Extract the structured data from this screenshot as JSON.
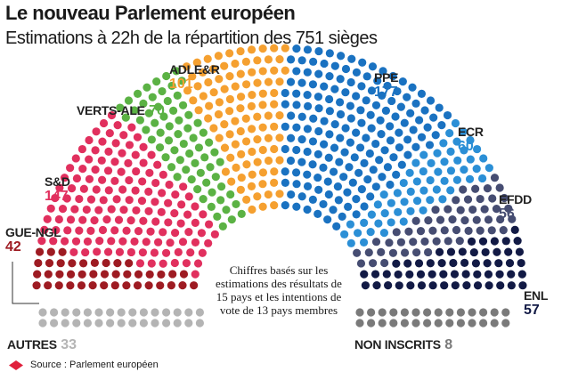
{
  "header": {
    "title": "Le nouveau Parlement européen",
    "subtitle": "Estimations à 22h de la répartition des 751 sièges"
  },
  "note": "Chiffres basés sur les estimations des résultats de 15 pays et les intentions de vote de 13 pays membres",
  "source": "Source : Parlement européen",
  "colors": {
    "AUTRES": "#b4b4b4",
    "GUE-NGL": "#9e1b22",
    "S&D": "#e1305e",
    "VERTS-ALE": "#5bb244",
    "ADLE&R": "#f5a030",
    "PPE": "#1a72c1",
    "ECR": "#2b8fd6",
    "EFDD": "#464d72",
    "ENL": "#121a45",
    "NON INSCRITS": "#7a7a7a"
  },
  "chart_data": {
    "type": "hemicycle",
    "title": "Le nouveau Parlement européen",
    "subtitle": "Estimations à 22h de la répartition des 751 sièges",
    "total_seats": 751,
    "categories": [
      "GUE-NGL",
      "S&D",
      "VERTS-ALE",
      "ADLE&R",
      "PPE",
      "ECR",
      "EFDD",
      "ENL"
    ],
    "values": [
      42,
      147,
      70,
      101,
      177,
      60,
      56,
      57
    ],
    "others": [
      {
        "name": "AUTRES",
        "value": 33
      },
      {
        "name": "NON INSCRITS",
        "value": 8
      }
    ],
    "labels": {
      "AUTRES": {
        "name": "AUTRES",
        "num": "33"
      },
      "GUE-NGL": {
        "name": "GUE-NGL",
        "num": "42"
      },
      "S&D": {
        "name": "S&D",
        "num": "147"
      },
      "VERTS-ALE": {
        "name": "VERTS-ALE",
        "num": "70"
      },
      "ADLE&R": {
        "name": "ADLE&R",
        "num": "101"
      },
      "PPE": {
        "name": "PPE",
        "num": "177"
      },
      "ECR": {
        "name": "ECR",
        "num": "60"
      },
      "EFDD": {
        "name": "EFDD",
        "num": "56"
      },
      "ENL": {
        "name": "ENL",
        "num": "57"
      },
      "NON INSCRITS": {
        "name": "NON INSCRITS",
        "num": "8"
      }
    }
  }
}
